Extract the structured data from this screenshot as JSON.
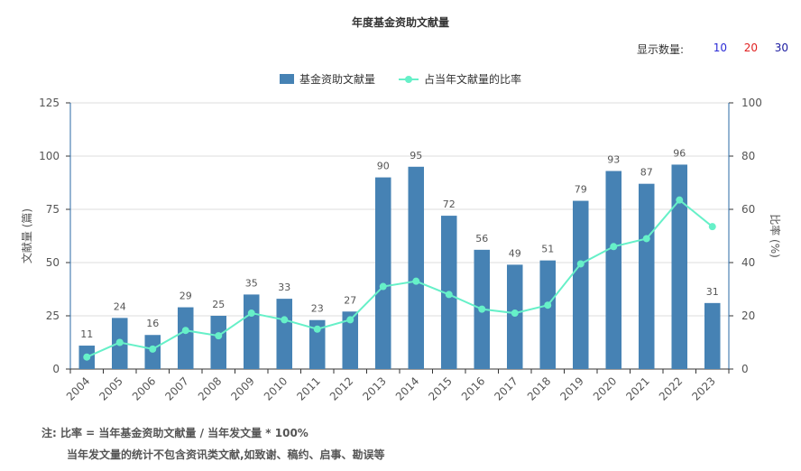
{
  "title": "年度基金资助文献量",
  "count_selector": {
    "label": "显示数量:",
    "options": [
      {
        "value": "10",
        "color": "#2b2bd6"
      },
      {
        "value": "20",
        "color": "#e02020"
      },
      {
        "value": "30",
        "color": "#1a1aa0"
      }
    ]
  },
  "legend": {
    "bar_label": "基金资助文献量",
    "line_label": "占当年文献量的比率"
  },
  "notes": {
    "line1": "注:   比率 = 当年基金资助文献量 / 当年发文量 * 100%",
    "line2": "当年发文量的统计不包含资讯类文献,如致谢、稿约、启事、勘误等"
  },
  "chart_data": {
    "type": "bar",
    "categories": [
      "2004",
      "2005",
      "2006",
      "2007",
      "2008",
      "2009",
      "2010",
      "2011",
      "2012",
      "2013",
      "2014",
      "2015",
      "2016",
      "2017",
      "2018",
      "2019",
      "2020",
      "2021",
      "2022",
      "2023"
    ],
    "series": [
      {
        "name": "基金资助文献量",
        "type": "bar",
        "axis": "left",
        "color": "#4682b4",
        "values": [
          11,
          24,
          16,
          29,
          25,
          35,
          33,
          23,
          27,
          90,
          95,
          72,
          56,
          49,
          51,
          79,
          93,
          87,
          96,
          31
        ]
      },
      {
        "name": "占当年文献量的比率",
        "type": "line",
        "axis": "right",
        "color": "#66f0c8",
        "values": [
          4.5,
          10,
          7.5,
          14.5,
          12.5,
          21,
          18.5,
          15,
          18.5,
          31,
          33,
          28,
          22.5,
          21,
          24,
          39.5,
          46,
          49,
          63.5,
          53.5
        ]
      }
    ],
    "ylabel": "文献量 (篇)",
    "y2label": "比率 (%)",
    "ylim": [
      0,
      125
    ],
    "yticks": [
      0,
      25,
      50,
      75,
      100,
      125
    ],
    "y2lim": [
      0,
      100
    ],
    "y2ticks": [
      0,
      20,
      40,
      60,
      80,
      100
    ],
    "grid": true
  }
}
